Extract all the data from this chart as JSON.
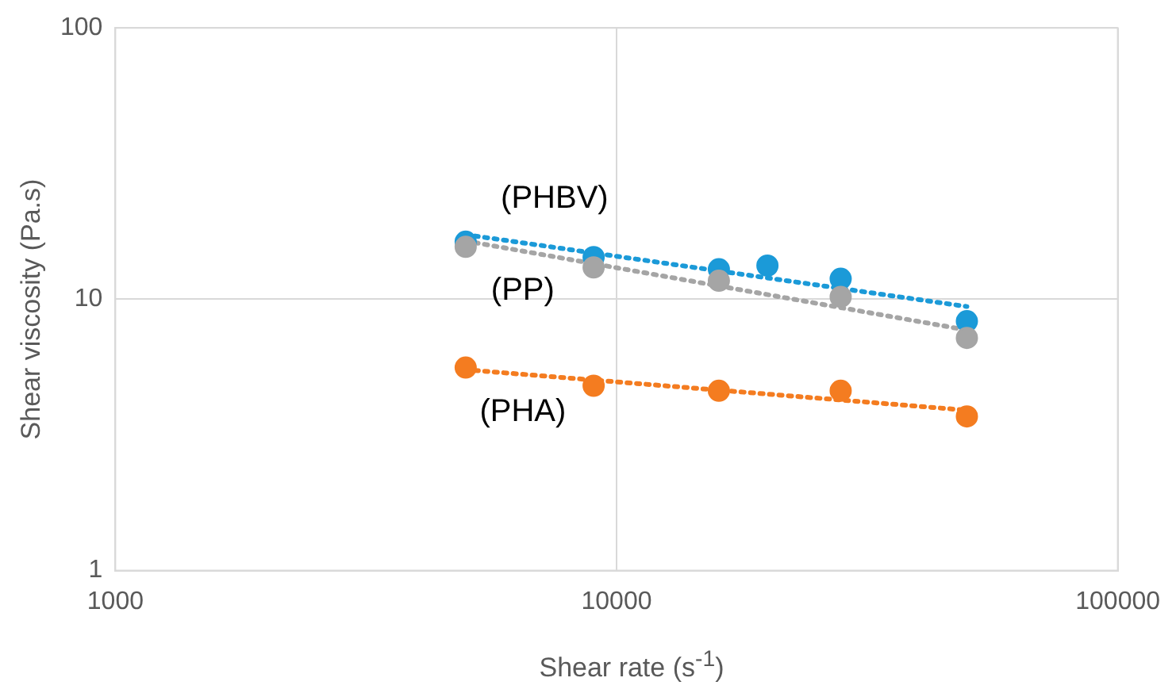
{
  "chart_data": {
    "type": "scatter",
    "xlabel": "Shear rate (s$^{-1}$)",
    "ylabel": "Shear viscosity (Pa.s)",
    "log": "xy",
    "xlim": [
      1000,
      100000
    ],
    "xticks": [
      1000,
      10000,
      100000
    ],
    "ylim": [
      1,
      100
    ],
    "yticks": [
      1,
      10,
      100
    ],
    "grid": true,
    "legend": false,
    "marker": "circle",
    "series": [
      {
        "name": "(PHBV)",
        "color": "#1b9ad8",
        "x": [
          5000,
          9000,
          16000,
          20000,
          28000,
          50000
        ],
        "values": [
          16.3,
          14.3,
          12.9,
          13.3,
          11.9,
          8.3
        ]
      },
      {
        "name": "(PP)",
        "color": "#a5a5a5",
        "x": [
          5000,
          9000,
          16000,
          28000,
          50000
        ],
        "values": [
          15.6,
          13.1,
          11.7,
          10.2,
          7.2
        ]
      },
      {
        "name": "(PHA)",
        "color": "#f47c20",
        "x": [
          5000,
          9000,
          16000,
          28000,
          50000
        ],
        "values": [
          5.6,
          4.8,
          4.6,
          4.6,
          3.7
        ]
      },
      {
        "type": "line",
        "line_style": "dotted",
        "marker": "none",
        "color": "#1b9ad8",
        "x": [
          5000,
          50000
        ],
        "values": [
          17.3,
          9.4
        ]
      },
      {
        "type": "line",
        "line_style": "dotted",
        "marker": "none",
        "color": "#a5a5a5",
        "x": [
          5000,
          50000
        ],
        "values": [
          16.4,
          7.7
        ]
      },
      {
        "type": "line",
        "line_style": "dotted",
        "marker": "none",
        "color": "#f47c20",
        "x": [
          5000,
          50000
        ],
        "values": [
          5.5,
          3.9
        ]
      }
    ]
  }
}
